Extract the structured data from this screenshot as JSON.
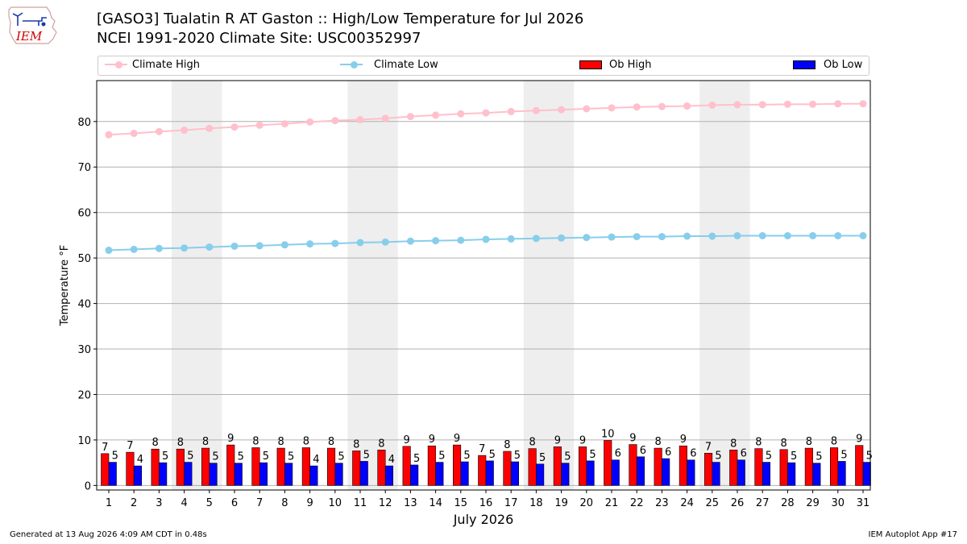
{
  "header": {
    "logo_text": "IEM",
    "title_line1": "[GASO3] Tualatin R  AT Gaston :: High/Low Temperature for Jul 2026",
    "title_line2": "NCEI 1991-2020 Climate Site: USC00352997"
  },
  "legend": {
    "climate_high": "Climate High",
    "climate_low": "Climate Low",
    "ob_high": "Ob High",
    "ob_low": "Ob Low"
  },
  "colors": {
    "climate_high": "#ffc0cb",
    "climate_low": "#87ceeb",
    "ob_high": "#ff0000",
    "ob_low": "#0000ff",
    "weekend_band": "#eeeeee",
    "grid": "#b0b0b0"
  },
  "chart_data": {
    "type": "bar",
    "xlabel": "July 2026",
    "ylabel": "Temperature °F",
    "ylim": [
      -1,
      89
    ],
    "yticks": [
      0,
      10,
      20,
      30,
      40,
      50,
      60,
      70,
      80
    ],
    "grid": true,
    "legend_position": "top",
    "categories": [
      "1",
      "2",
      "3",
      "4",
      "5",
      "6",
      "7",
      "8",
      "9",
      "10",
      "11",
      "12",
      "13",
      "14",
      "15",
      "16",
      "17",
      "18",
      "19",
      "20",
      "21",
      "22",
      "23",
      "24",
      "25",
      "26",
      "27",
      "28",
      "29",
      "30",
      "31"
    ],
    "weekend_days": [
      [
        4,
        5
      ],
      [
        11,
        12
      ],
      [
        18,
        19
      ],
      [
        25,
        26
      ]
    ],
    "series": [
      {
        "name": "Climate High",
        "kind": "line",
        "values": [
          77.1,
          77.4,
          77.8,
          78.1,
          78.5,
          78.8,
          79.2,
          79.5,
          79.9,
          80.2,
          80.4,
          80.7,
          81.1,
          81.4,
          81.7,
          81.9,
          82.2,
          82.4,
          82.6,
          82.8,
          83.0,
          83.2,
          83.3,
          83.4,
          83.6,
          83.7,
          83.7,
          83.8,
          83.8,
          83.9,
          83.9
        ]
      },
      {
        "name": "Climate Low",
        "kind": "line",
        "values": [
          51.7,
          51.9,
          52.1,
          52.2,
          52.4,
          52.6,
          52.7,
          52.9,
          53.1,
          53.2,
          53.4,
          53.5,
          53.7,
          53.8,
          53.9,
          54.1,
          54.2,
          54.3,
          54.4,
          54.5,
          54.6,
          54.7,
          54.7,
          54.8,
          54.8,
          54.9,
          54.9,
          54.9,
          54.9,
          54.9,
          54.9
        ]
      },
      {
        "name": "Ob High",
        "kind": "bar",
        "values": [
          7,
          7.3,
          8,
          8,
          8.2,
          8.9,
          8.3,
          8.2,
          8.3,
          8.2,
          7.6,
          7.8,
          8.6,
          8.7,
          8.9,
          6.6,
          7.5,
          8.1,
          8.5,
          8.5,
          9.9,
          9.0,
          8.2,
          8.7,
          7.1,
          7.8,
          8.1,
          7.9,
          8.2,
          8.3,
          8.8
        ],
        "labels": [
          "7",
          "7",
          "8",
          "8",
          "8",
          "9",
          "8",
          "8",
          "8",
          "8",
          "8",
          "8",
          "9",
          "9",
          "9",
          "7",
          "8",
          "8",
          "9",
          "9",
          "10",
          "9",
          "8",
          "9",
          "7",
          "8",
          "8",
          "8",
          "8",
          "8",
          "9"
        ]
      },
      {
        "name": "Ob Low",
        "kind": "bar",
        "values": [
          5.1,
          4.3,
          5.0,
          5.1,
          4.9,
          4.9,
          5.0,
          4.9,
          4.3,
          4.9,
          5.3,
          4.3,
          4.5,
          5.1,
          5.2,
          5.4,
          5.2,
          4.7,
          4.9,
          5.4,
          5.6,
          6.3,
          5.9,
          5.6,
          5.1,
          5.6,
          5.1,
          5.0,
          4.9,
          5.3,
          5.1
        ],
        "labels": [
          "5",
          "4",
          "5",
          "5",
          "5",
          "5",
          "5",
          "5",
          "4",
          "5",
          "5",
          "4",
          "5",
          "5",
          "5",
          "5",
          "5",
          "5",
          "5",
          "5",
          "6",
          "6",
          "6",
          "6",
          "5",
          "6",
          "5",
          "5",
          "5",
          "5",
          "5"
        ]
      }
    ]
  },
  "footer": {
    "left": "Generated at 13 Aug 2026 4:09 AM CDT in 0.48s",
    "right": "IEM Autoplot App #17"
  }
}
